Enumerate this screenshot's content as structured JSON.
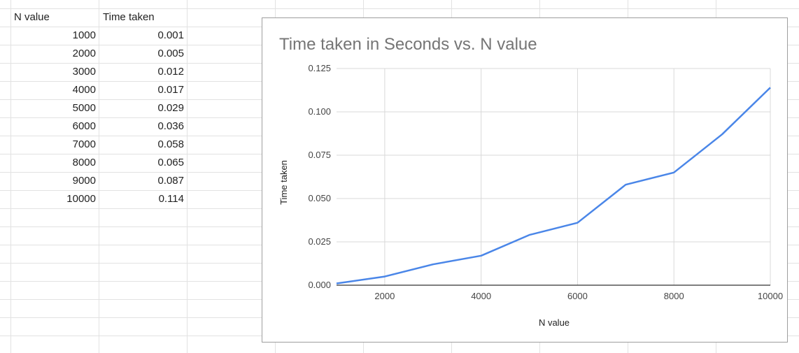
{
  "table": {
    "headers": [
      "N value",
      "Time taken"
    ],
    "rows": [
      [
        "1000",
        "0.001"
      ],
      [
        "2000",
        "0.005"
      ],
      [
        "3000",
        "0.012"
      ],
      [
        "4000",
        "0.017"
      ],
      [
        "5000",
        "0.029"
      ],
      [
        "6000",
        "0.036"
      ],
      [
        "7000",
        "0.058"
      ],
      [
        "8000",
        "0.065"
      ],
      [
        "9000",
        "0.087"
      ],
      [
        "10000",
        "0.114"
      ]
    ]
  },
  "chart_data": {
    "type": "line",
    "title": "Time taken in Seconds vs. N value",
    "xlabel": "N value",
    "ylabel": "Time taken",
    "x": [
      1000,
      2000,
      3000,
      4000,
      5000,
      6000,
      7000,
      8000,
      9000,
      10000
    ],
    "series": [
      {
        "values": [
          0.001,
          0.005,
          0.012,
          0.017,
          0.029,
          0.036,
          0.058,
          0.065,
          0.087,
          0.114
        ]
      }
    ],
    "xlim": [
      1000,
      10000
    ],
    "ylim": [
      0,
      0.125
    ],
    "x_ticks": [
      "2000",
      "4000",
      "6000",
      "8000",
      "10000"
    ],
    "y_ticks": [
      "0.000",
      "0.025",
      "0.050",
      "0.075",
      "0.100",
      "0.125"
    ],
    "grid": true,
    "legend": "none",
    "colors": {
      "line": "#4a86e8",
      "grid": "#d9d9d9",
      "axis": "#333333",
      "title": "#757575"
    }
  }
}
